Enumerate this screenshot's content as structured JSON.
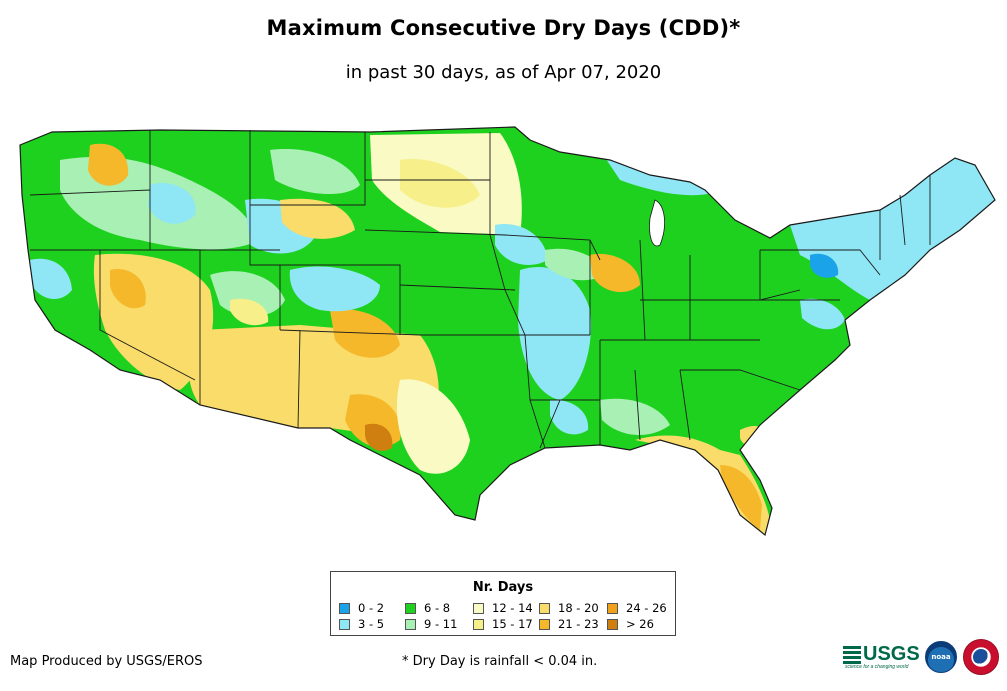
{
  "title": "Maximum Consecutive Dry Days (CDD)*",
  "subtitle": "in past 30 days, as of Apr 07, 2020",
  "legend": {
    "title": "Nr. Days",
    "items": [
      {
        "label": "0 - 2",
        "color": "#1aa3e8"
      },
      {
        "label": "3 - 5",
        "color": "#8fe6f5"
      },
      {
        "label": "6 - 8",
        "color": "#1fd11f"
      },
      {
        "label": "9 - 11",
        "color": "#a8f0b4"
      },
      {
        "label": "12 - 14",
        "color": "#fafac4"
      },
      {
        "label": "15 - 17",
        "color": "#f7f08a"
      },
      {
        "label": "18 - 20",
        "color": "#f9dc6a"
      },
      {
        "label": "21 - 23",
        "color": "#f5b82a"
      },
      {
        "label": "24 - 26",
        "color": "#f0a21c"
      },
      {
        "label": "> 26",
        "color": "#cf7f0f"
      }
    ]
  },
  "credit": "Map Produced by USGS/EROS",
  "footnote": "* Dry Day is rainfall < 0.04 in.",
  "logos": {
    "usgs": "USGS",
    "usgs_tagline": "science for a changing world",
    "noaa": "noaa"
  },
  "colors": {
    "state_border": "#1a1a1a",
    "background": "#ffffff"
  }
}
